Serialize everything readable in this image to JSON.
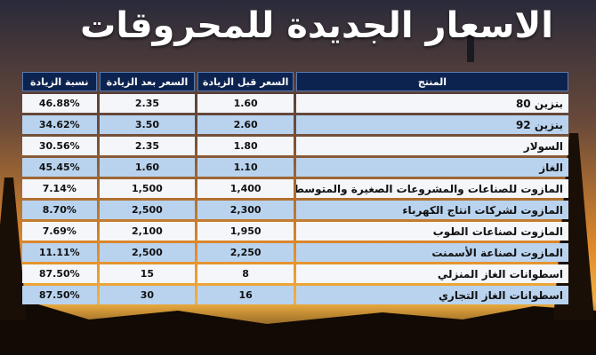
{
  "header": {
    "title": "الاسعار الجديدة للمحروقات"
  },
  "table": {
    "headers": [
      "المنتج",
      "السعر قبل الزيادة",
      "السعر بعد الزيادة",
      "نسبة الزيادة"
    ],
    "rows": [
      [
        "بنزين 80",
        "1.60",
        "2.35",
        "46.88%"
      ],
      [
        "بنزين 92",
        "2.60",
        "3.50",
        "34.62%"
      ],
      [
        "السولار",
        "1.80",
        "2.35",
        "30.56%"
      ],
      [
        "الغاز",
        "1.10",
        "1.60",
        "45.45%"
      ],
      [
        "المازوت للصناعات والمشروعات الصغيرة والمتوسطة",
        "1,400",
        "1,500",
        "7.14%"
      ],
      [
        "المازوت لشركات انتاج الكهرباء",
        "2,300",
        "2,500",
        "8.70%"
      ],
      [
        "المازوت لصناعات الطوب",
        "1,950",
        "2,100",
        "7.69%"
      ],
      [
        "المازوت لصناعة الأسمنت",
        "2,250",
        "2,500",
        "11.11%"
      ],
      [
        "اسطوانات الغاز المنزلي",
        "8",
        "15",
        "87.50%"
      ],
      [
        "اسطوانات الغاز التجاري",
        "16",
        "30",
        "87.50%"
      ]
    ]
  }
}
